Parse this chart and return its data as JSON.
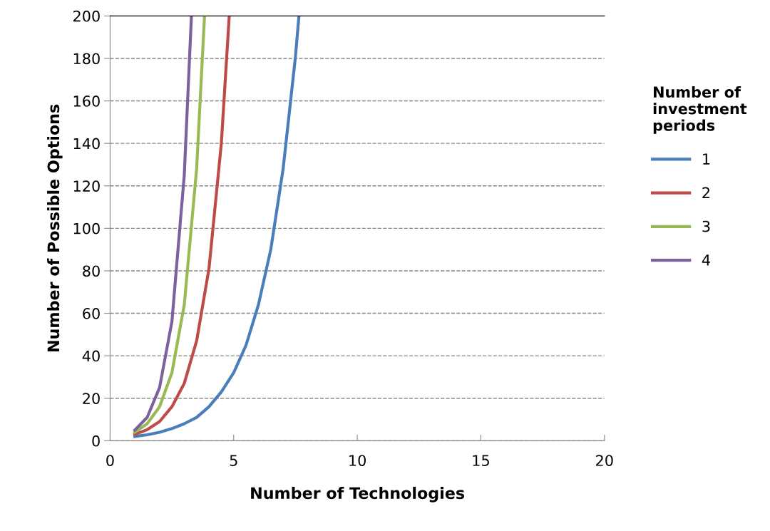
{
  "chart_data": {
    "type": "line",
    "xlabel": "Number of Technologies",
    "ylabel": "Number of Possible Options",
    "legend_title": "Number of\ninvestment\nperiods",
    "xlim": [
      0,
      20
    ],
    "xticks": [
      0,
      5,
      10,
      15,
      20
    ],
    "ylim": [
      0,
      200
    ],
    "yticks": [
      0,
      20,
      40,
      60,
      80,
      100,
      120,
      140,
      160,
      180,
      200
    ],
    "grid": "y",
    "legend": "right",
    "marker": "none",
    "line_style": "solid",
    "series": [
      {
        "name": "1",
        "color": "#4a7ebb",
        "x": [
          1,
          1.5,
          2,
          2.5,
          3,
          3.5,
          4,
          4.5,
          5,
          5.5,
          6,
          6.5,
          7,
          7.5,
          7.64
        ],
        "values": [
          2,
          2.8,
          4,
          5.7,
          8,
          11,
          16,
          23,
          32,
          45,
          64,
          90,
          128,
          181,
          200
        ]
      },
      {
        "name": "2",
        "color": "#be4b48",
        "x": [
          1,
          1.5,
          2,
          2.5,
          3,
          3.5,
          4,
          4.5,
          4.82
        ],
        "values": [
          3,
          5.2,
          9,
          16,
          27,
          47,
          81,
          140,
          200
        ]
      },
      {
        "name": "3",
        "color": "#98b954",
        "x": [
          1,
          1.5,
          2,
          2.5,
          3,
          3.5,
          3.82
        ],
        "values": [
          4,
          8,
          16,
          32,
          64,
          128,
          200
        ]
      },
      {
        "name": "4",
        "color": "#7d60a0",
        "x": [
          1,
          1.5,
          2,
          2.5,
          3,
          3.29
        ],
        "values": [
          5,
          11,
          25,
          56,
          125,
          200
        ]
      }
    ]
  }
}
